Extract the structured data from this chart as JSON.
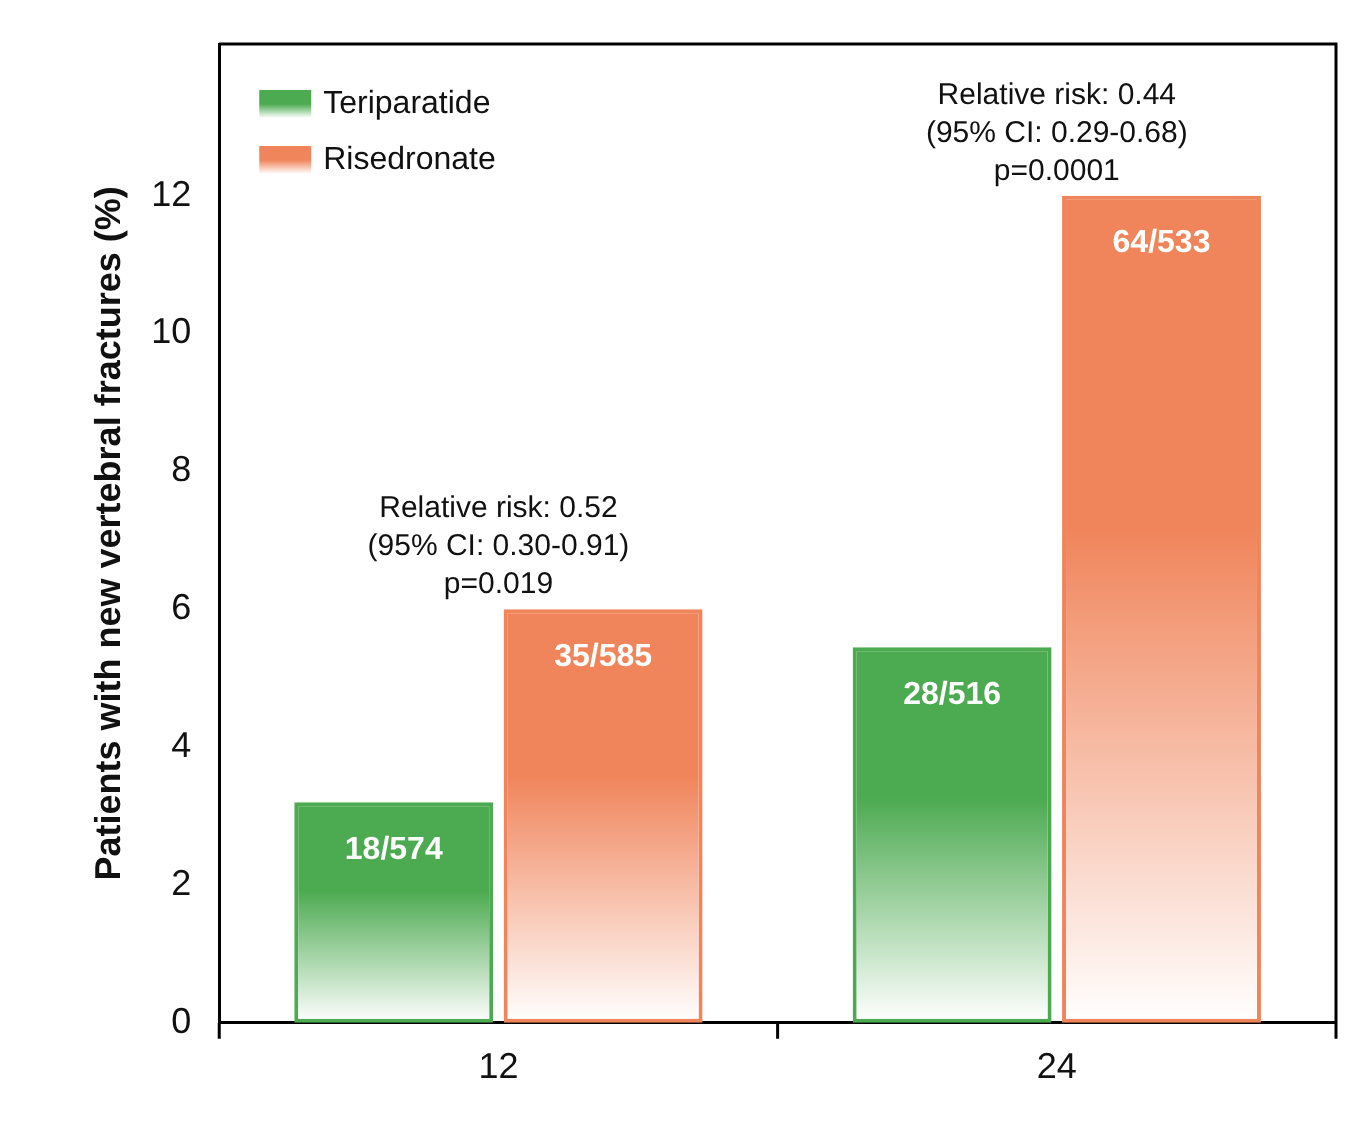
{
  "chart_data": {
    "type": "bar",
    "ylabel": "Patients with new vertebral fractures (%)",
    "categories": [
      "12",
      "24"
    ],
    "series": [
      {
        "name": "Teriparatide",
        "color": "#4caa50",
        "values": [
          3.2,
          5.45
        ],
        "value_labels": [
          "18/574",
          "28/516"
        ]
      },
      {
        "name": "Risedronate",
        "color": "#f0845a",
        "values": [
          6.0,
          12.0
        ],
        "value_labels": [
          "35/585",
          "64/533"
        ]
      }
    ],
    "ylim": [
      0,
      14.2
    ],
    "yticks": [
      0,
      2,
      4,
      6,
      8,
      10,
      12
    ],
    "grid": false,
    "legend": "top left",
    "annotations": [
      {
        "text": "Relative risk: 0.52\n(95% CI: 0.30-0.91)\np=0.019",
        "x": "12",
        "y": 6.0
      },
      {
        "text": "Relative risk: 0.44\n(95% CI: 0.29-0.68)\np=0.0001",
        "x": "24",
        "y": 12.0
      }
    ]
  }
}
